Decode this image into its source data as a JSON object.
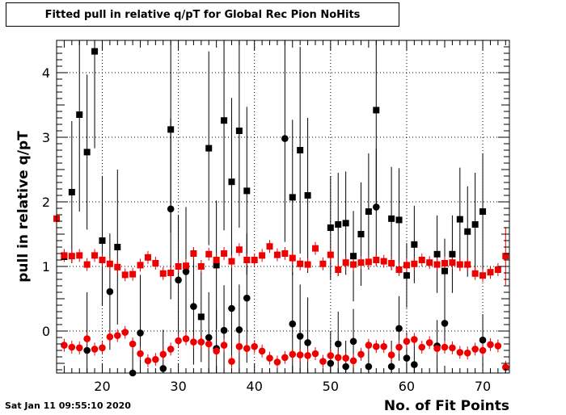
{
  "page": {
    "title": "Fitted pull in relative q/pT for Global Rec Pion NoHits",
    "timestamp": "Sat Jan 11 09:55:10 2020"
  },
  "chart_data": {
    "type": "scatter",
    "title": "Fitted pull in relative q/pT for Global Rec Pion NoHits",
    "xlabel": "No. of Fit Points",
    "ylabel": "pull in relative q/pT",
    "xlim": [
      14,
      73.5
    ],
    "ylim": [
      -0.65,
      4.5
    ],
    "x_ticks": [
      20,
      30,
      40,
      50,
      60,
      70
    ],
    "y_ticks": [
      0,
      1,
      2,
      3,
      4
    ],
    "grid": true,
    "legend": "none",
    "series": [
      {
        "marker": "square",
        "color": "#000000",
        "points": [
          {
            "x": 16,
            "y": 2.15,
            "err": 1.1
          },
          {
            "x": 17,
            "y": 3.35,
            "err": 1.5
          },
          {
            "x": 18,
            "y": 2.77,
            "err": 1.2
          },
          {
            "x": 19,
            "y": 4.33,
            "err": 1.5
          },
          {
            "x": 20,
            "y": 1.4,
            "err": 1.0
          },
          {
            "x": 22,
            "y": 1.3,
            "err": 1.2
          },
          {
            "x": 29,
            "y": 3.12,
            "err": 1.6
          },
          {
            "x": 34,
            "y": 2.83,
            "err": 1.5
          },
          {
            "x": 35,
            "y": 1.02,
            "err": 1.0
          },
          {
            "x": 36,
            "y": 3.26,
            "err": 1.7
          },
          {
            "x": 37,
            "y": 2.31,
            "err": 1.3
          },
          {
            "x": 38,
            "y": 3.1,
            "err": 1.5
          },
          {
            "x": 39,
            "y": 2.17,
            "err": 1.3
          },
          {
            "x": 45,
            "y": 2.07,
            "err": 1.2
          },
          {
            "x": 46,
            "y": 2.8,
            "err": 1.6
          },
          {
            "x": 47,
            "y": 2.1,
            "err": 1.2
          },
          {
            "x": 50,
            "y": 1.6,
            "err": 0.8
          },
          {
            "x": 51,
            "y": 1.65,
            "err": 0.8
          },
          {
            "x": 52,
            "y": 1.67,
            "err": 0.8
          },
          {
            "x": 53,
            "y": 1.16,
            "err": 0.7
          },
          {
            "x": 54,
            "y": 1.5,
            "err": 0.8
          },
          {
            "x": 55,
            "y": 1.85,
            "err": 0.9
          },
          {
            "x": 56,
            "y": 3.42,
            "err": 1.5
          },
          {
            "x": 58,
            "y": 1.74,
            "err": 0.8
          },
          {
            "x": 59,
            "y": 1.72,
            "err": 0.8
          },
          {
            "x": 60,
            "y": 0.86,
            "err": 0.5
          },
          {
            "x": 61,
            "y": 1.34,
            "err": 0.6
          },
          {
            "x": 64,
            "y": 1.19,
            "err": 0.6
          },
          {
            "x": 65,
            "y": 0.93,
            "err": 0.5
          },
          {
            "x": 66,
            "y": 1.19,
            "err": 0.6
          },
          {
            "x": 67,
            "y": 1.73,
            "err": 0.8
          },
          {
            "x": 68,
            "y": 1.54,
            "err": 0.7
          },
          {
            "x": 69,
            "y": 1.65,
            "err": 0.8
          },
          {
            "x": 70,
            "y": 1.85,
            "err": 0.9
          },
          {
            "x": 15,
            "y": 1.15,
            "err": 0.0
          },
          {
            "x": 33,
            "y": 0.22,
            "err": 0.7
          }
        ]
      },
      {
        "marker": "circle",
        "color": "#000000",
        "points": [
          {
            "x": 18,
            "y": -0.3,
            "err": 0.9
          },
          {
            "x": 21,
            "y": 0.61,
            "err": 0.9
          },
          {
            "x": 24,
            "y": -0.65,
            "err": 0.5
          },
          {
            "x": 25,
            "y": -0.03,
            "err": 0.9
          },
          {
            "x": 28,
            "y": -0.58,
            "err": 0.6
          },
          {
            "x": 29,
            "y": 1.89,
            "err": 1.4
          },
          {
            "x": 30,
            "y": 0.79,
            "err": 1.0
          },
          {
            "x": 31,
            "y": 0.92,
            "err": 1.0
          },
          {
            "x": 32,
            "y": 0.38,
            "err": 0.9
          },
          {
            "x": 34,
            "y": -0.1,
            "err": 0.7
          },
          {
            "x": 35,
            "y": -0.27,
            "err": 0.6
          },
          {
            "x": 36,
            "y": 0.01,
            "err": 0.7
          },
          {
            "x": 37,
            "y": 0.35,
            "err": 0.9
          },
          {
            "x": 38,
            "y": 0.02,
            "err": 0.7
          },
          {
            "x": 39,
            "y": 0.51,
            "err": 1.0
          },
          {
            "x": 44,
            "y": 2.98,
            "err": 1.6
          },
          {
            "x": 45,
            "y": 0.11,
            "err": 0.8
          },
          {
            "x": 46,
            "y": -0.08,
            "err": 0.8
          },
          {
            "x": 47,
            "y": -0.18,
            "err": 0.7
          },
          {
            "x": 50,
            "y": -0.5,
            "err": 0.5
          },
          {
            "x": 51,
            "y": -0.2,
            "err": 0.5
          },
          {
            "x": 52,
            "y": -0.55,
            "err": 0.4
          },
          {
            "x": 53,
            "y": -0.16,
            "err": 0.5
          },
          {
            "x": 55,
            "y": -0.55,
            "err": 0.4
          },
          {
            "x": 56,
            "y": 1.92,
            "err": 0.9
          },
          {
            "x": 58,
            "y": -0.55,
            "err": 0.4
          },
          {
            "x": 59,
            "y": 0.04,
            "err": 0.5
          },
          {
            "x": 60,
            "y": -0.42,
            "err": 0.4
          },
          {
            "x": 61,
            "y": -0.52,
            "err": 0.4
          },
          {
            "x": 64,
            "y": -0.23,
            "err": 0.4
          },
          {
            "x": 65,
            "y": 0.12,
            "err": 0.4
          },
          {
            "x": 70,
            "y": -0.14,
            "err": 0.4
          }
        ]
      },
      {
        "marker": "square",
        "color": "#ee0000",
        "points": [
          {
            "x": 14,
            "y": 1.74,
            "err": 0.85
          },
          {
            "x": 15,
            "y": 1.17,
            "err": 0.1
          },
          {
            "x": 16,
            "y": 1.16,
            "err": 0.1
          },
          {
            "x": 17,
            "y": 1.17,
            "err": 0.1
          },
          {
            "x": 18,
            "y": 1.03,
            "err": 0.1
          },
          {
            "x": 19,
            "y": 1.17,
            "err": 0.1
          },
          {
            "x": 20,
            "y": 1.1,
            "err": 0.1
          },
          {
            "x": 21,
            "y": 1.04,
            "err": 0.1
          },
          {
            "x": 22,
            "y": 0.99,
            "err": 0.1
          },
          {
            "x": 23,
            "y": 0.87,
            "err": 0.1
          },
          {
            "x": 24,
            "y": 0.88,
            "err": 0.1
          },
          {
            "x": 25,
            "y": 1.02,
            "err": 0.1
          },
          {
            "x": 26,
            "y": 1.14,
            "err": 0.1
          },
          {
            "x": 27,
            "y": 1.05,
            "err": 0.1
          },
          {
            "x": 28,
            "y": 0.89,
            "err": 0.1
          },
          {
            "x": 29,
            "y": 0.9,
            "err": 0.1
          },
          {
            "x": 30,
            "y": 1.0,
            "err": 0.1
          },
          {
            "x": 31,
            "y": 1.01,
            "err": 0.1
          },
          {
            "x": 32,
            "y": 1.2,
            "err": 0.1
          },
          {
            "x": 33,
            "y": 1.0,
            "err": 0.1
          },
          {
            "x": 34,
            "y": 1.19,
            "err": 0.1
          },
          {
            "x": 35,
            "y": 1.1,
            "err": 0.1
          },
          {
            "x": 36,
            "y": 1.2,
            "err": 0.1
          },
          {
            "x": 37,
            "y": 1.08,
            "err": 0.1
          },
          {
            "x": 38,
            "y": 1.26,
            "err": 0.1
          },
          {
            "x": 39,
            "y": 1.1,
            "err": 0.1
          },
          {
            "x": 40,
            "y": 1.1,
            "err": 0.1
          },
          {
            "x": 41,
            "y": 1.17,
            "err": 0.1
          },
          {
            "x": 42,
            "y": 1.31,
            "err": 0.1
          },
          {
            "x": 43,
            "y": 1.18,
            "err": 0.1
          },
          {
            "x": 44,
            "y": 1.2,
            "err": 0.1
          },
          {
            "x": 45,
            "y": 1.13,
            "err": 0.1
          },
          {
            "x": 46,
            "y": 1.04,
            "err": 0.1
          },
          {
            "x": 47,
            "y": 1.03,
            "err": 0.1
          },
          {
            "x": 48,
            "y": 1.28,
            "err": 0.1
          },
          {
            "x": 49,
            "y": 1.04,
            "err": 0.1
          },
          {
            "x": 50,
            "y": 1.18,
            "err": 0.1
          },
          {
            "x": 51,
            "y": 0.95,
            "err": 0.1
          },
          {
            "x": 52,
            "y": 1.06,
            "err": 0.1
          },
          {
            "x": 53,
            "y": 1.03,
            "err": 0.1
          },
          {
            "x": 54,
            "y": 1.06,
            "err": 0.1
          },
          {
            "x": 55,
            "y": 1.07,
            "err": 0.1
          },
          {
            "x": 56,
            "y": 1.1,
            "err": 0.1
          },
          {
            "x": 57,
            "y": 1.08,
            "err": 0.1
          },
          {
            "x": 58,
            "y": 1.05,
            "err": 0.1
          },
          {
            "x": 59,
            "y": 0.95,
            "err": 0.1
          },
          {
            "x": 60,
            "y": 1.02,
            "err": 0.1
          },
          {
            "x": 61,
            "y": 1.04,
            "err": 0.1
          },
          {
            "x": 62,
            "y": 1.1,
            "err": 0.1
          },
          {
            "x": 63,
            "y": 1.06,
            "err": 0.1
          },
          {
            "x": 64,
            "y": 1.03,
            "err": 0.1
          },
          {
            "x": 65,
            "y": 1.05,
            "err": 0.1
          },
          {
            "x": 66,
            "y": 1.06,
            "err": 0.1
          },
          {
            "x": 67,
            "y": 1.03,
            "err": 0.1
          },
          {
            "x": 68,
            "y": 1.03,
            "err": 0.1
          },
          {
            "x": 69,
            "y": 0.89,
            "err": 0.1
          },
          {
            "x": 70,
            "y": 0.86,
            "err": 0.1
          },
          {
            "x": 71,
            "y": 0.91,
            "err": 0.1
          },
          {
            "x": 72,
            "y": 0.95,
            "err": 0.1
          },
          {
            "x": 73,
            "y": 1.16,
            "err": 0.45
          }
        ]
      },
      {
        "marker": "circle",
        "color": "#ee0000",
        "points": [
          {
            "x": 15,
            "y": -0.22,
            "err": 0.1
          },
          {
            "x": 16,
            "y": -0.25,
            "err": 0.1
          },
          {
            "x": 17,
            "y": -0.26,
            "err": 0.1
          },
          {
            "x": 18,
            "y": -0.12,
            "err": 0.1
          },
          {
            "x": 19,
            "y": -0.28,
            "err": 0.1
          },
          {
            "x": 20,
            "y": -0.26,
            "err": 0.1
          },
          {
            "x": 21,
            "y": -0.09,
            "err": 0.1
          },
          {
            "x": 22,
            "y": -0.07,
            "err": 0.1
          },
          {
            "x": 23,
            "y": -0.02,
            "err": 0.1
          },
          {
            "x": 24,
            "y": -0.2,
            "err": 0.1
          },
          {
            "x": 25,
            "y": -0.35,
            "err": 0.1
          },
          {
            "x": 26,
            "y": -0.46,
            "err": 0.1
          },
          {
            "x": 27,
            "y": -0.44,
            "err": 0.1
          },
          {
            "x": 28,
            "y": -0.36,
            "err": 0.1
          },
          {
            "x": 29,
            "y": -0.28,
            "err": 0.1
          },
          {
            "x": 30,
            "y": -0.15,
            "err": 0.1
          },
          {
            "x": 31,
            "y": -0.12,
            "err": 0.1
          },
          {
            "x": 32,
            "y": -0.17,
            "err": 0.1
          },
          {
            "x": 33,
            "y": -0.17,
            "err": 0.1
          },
          {
            "x": 34,
            "y": -0.2,
            "err": 0.1
          },
          {
            "x": 35,
            "y": -0.31,
            "err": 0.1
          },
          {
            "x": 36,
            "y": -0.22,
            "err": 0.1
          },
          {
            "x": 37,
            "y": -0.47,
            "err": 0.1
          },
          {
            "x": 38,
            "y": -0.24,
            "err": 0.1
          },
          {
            "x": 39,
            "y": -0.27,
            "err": 0.1
          },
          {
            "x": 40,
            "y": -0.24,
            "err": 0.1
          },
          {
            "x": 41,
            "y": -0.31,
            "err": 0.1
          },
          {
            "x": 42,
            "y": -0.42,
            "err": 0.1
          },
          {
            "x": 43,
            "y": -0.48,
            "err": 0.1
          },
          {
            "x": 44,
            "y": -0.41,
            "err": 0.1
          },
          {
            "x": 45,
            "y": -0.36,
            "err": 0.1
          },
          {
            "x": 46,
            "y": -0.37,
            "err": 0.1
          },
          {
            "x": 47,
            "y": -0.38,
            "err": 0.1
          },
          {
            "x": 48,
            "y": -0.35,
            "err": 0.1
          },
          {
            "x": 49,
            "y": -0.47,
            "err": 0.1
          },
          {
            "x": 50,
            "y": -0.38,
            "err": 0.1
          },
          {
            "x": 51,
            "y": -0.41,
            "err": 0.1
          },
          {
            "x": 52,
            "y": -0.42,
            "err": 0.1
          },
          {
            "x": 53,
            "y": -0.46,
            "err": 0.1
          },
          {
            "x": 54,
            "y": -0.36,
            "err": 0.1
          },
          {
            "x": 55,
            "y": -0.22,
            "err": 0.1
          },
          {
            "x": 56,
            "y": -0.24,
            "err": 0.1
          },
          {
            "x": 57,
            "y": -0.24,
            "err": 0.1
          },
          {
            "x": 58,
            "y": -0.37,
            "err": 0.1
          },
          {
            "x": 59,
            "y": -0.25,
            "err": 0.1
          },
          {
            "x": 60,
            "y": -0.16,
            "err": 0.1
          },
          {
            "x": 61,
            "y": -0.13,
            "err": 0.1
          },
          {
            "x": 62,
            "y": -0.25,
            "err": 0.1
          },
          {
            "x": 63,
            "y": -0.18,
            "err": 0.1
          },
          {
            "x": 64,
            "y": -0.27,
            "err": 0.1
          },
          {
            "x": 65,
            "y": -0.25,
            "err": 0.1
          },
          {
            "x": 66,
            "y": -0.26,
            "err": 0.1
          },
          {
            "x": 67,
            "y": -0.33,
            "err": 0.1
          },
          {
            "x": 68,
            "y": -0.34,
            "err": 0.1
          },
          {
            "x": 69,
            "y": -0.28,
            "err": 0.1
          },
          {
            "x": 70,
            "y": -0.3,
            "err": 0.1
          },
          {
            "x": 71,
            "y": -0.21,
            "err": 0.1
          },
          {
            "x": 72,
            "y": -0.23,
            "err": 0.1
          },
          {
            "x": 73,
            "y": -0.56,
            "err": 0.1
          }
        ]
      }
    ]
  }
}
